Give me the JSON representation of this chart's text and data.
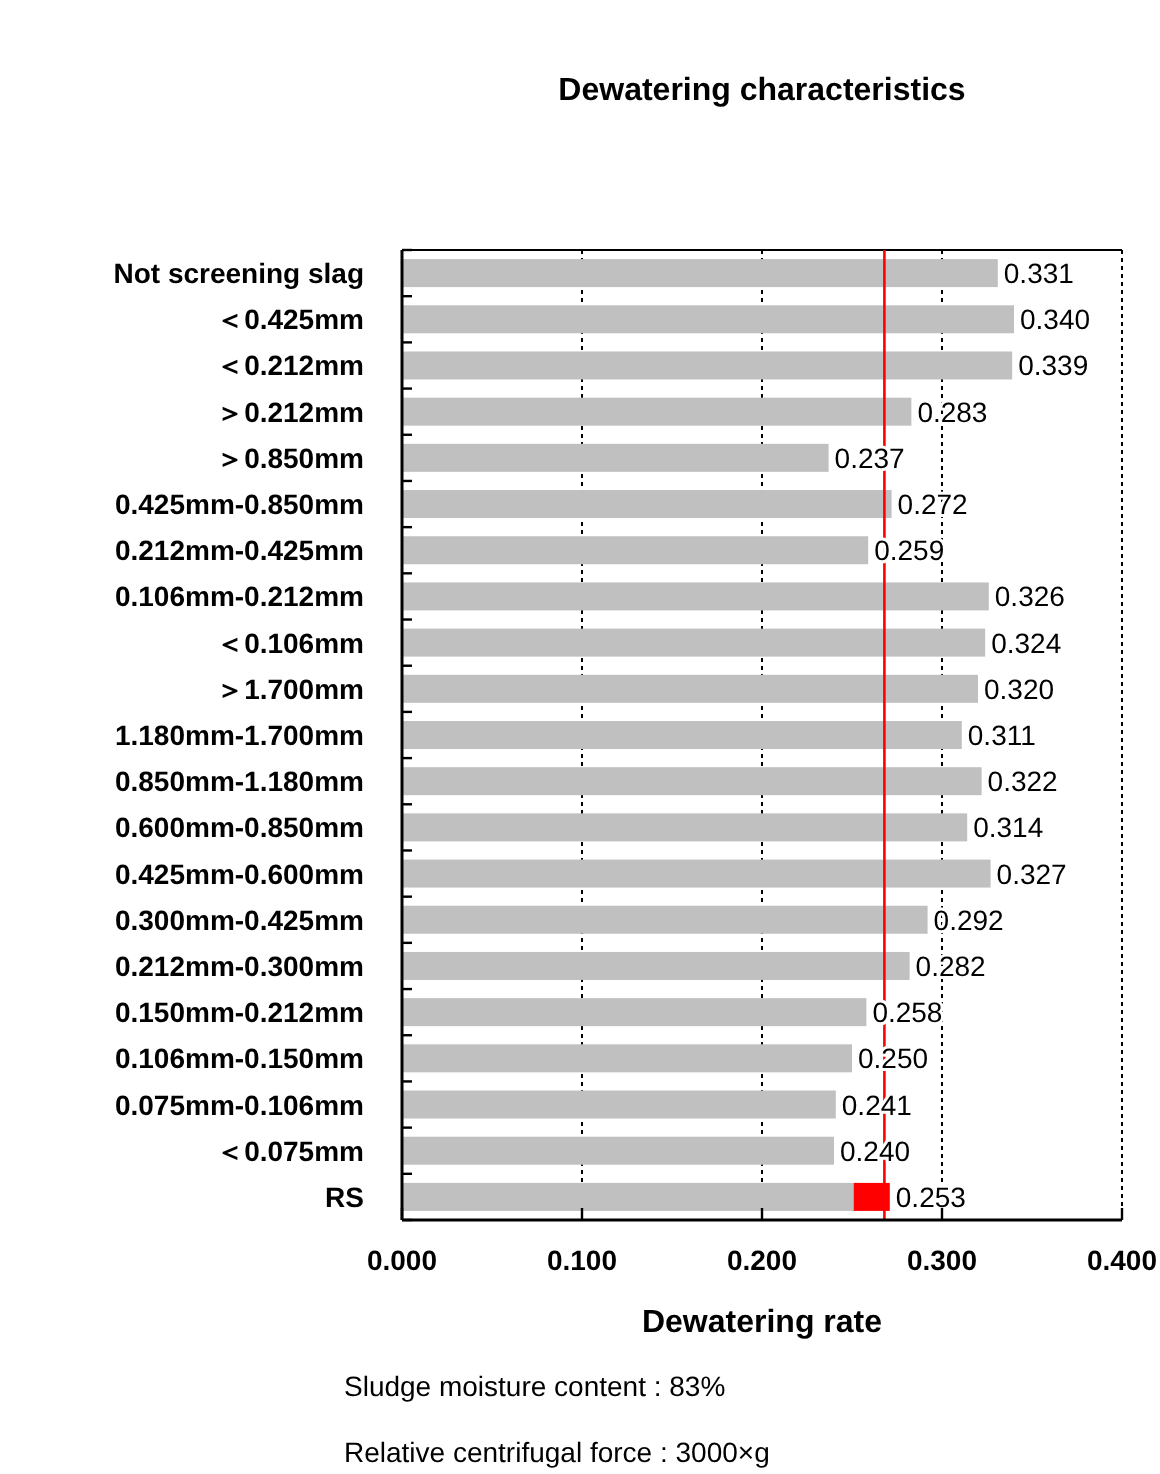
{
  "chart_data": {
    "type": "bar",
    "orientation": "horizontal",
    "title": "Dewatering characteristics",
    "xlabel": "Dewatering rate",
    "categories": [
      "Not screening slag",
      "＜0.425mm",
      "＜0.212mm",
      "＞0.212mm",
      "＞0.850mm",
      "0.425mm-0.850mm",
      "0.212mm-0.425mm",
      "0.106mm-0.212mm",
      "＜0.106mm",
      "＞1.700mm",
      "1.180mm-1.700mm",
      "0.850mm-1.180mm",
      "0.600mm-0.850mm",
      "0.425mm-0.600mm",
      "0.300mm-0.425mm",
      "0.212mm-0.300mm",
      "0.150mm-0.212mm",
      "0.106mm-0.150mm",
      "0.075mm-0.106mm",
      "＜0.075mm",
      "RS"
    ],
    "series": [
      {
        "color": "#c0c0c0",
        "values": [
          0.331,
          0.34,
          0.339,
          0.283,
          0.237,
          0.272,
          0.259,
          0.326,
          0.324,
          0.32,
          0.311,
          0.322,
          0.314,
          0.327,
          0.292,
          0.282,
          0.258,
          0.25,
          0.241,
          0.24,
          0.253
        ],
        "value_labels": [
          "0.331",
          "0.340",
          "0.339",
          "0.283",
          "0.237",
          "0.272",
          "0.259",
          "0.326",
          "0.324",
          "0.320",
          "0.311",
          "0.322",
          "0.314",
          "0.327",
          "0.292",
          "0.282",
          "0.258",
          "0.250",
          "0.241",
          "0.240",
          "0.253"
        ]
      },
      {
        "type": "scatter",
        "marker": "square",
        "color": "#ff0000",
        "x": [
          "RS"
        ],
        "values": [
          0.261
        ]
      }
    ],
    "xlim": [
      0,
      0.4
    ],
    "xticks": [
      {
        "value": 0,
        "label": "0.000"
      },
      {
        "value": 0.1,
        "label": "0.100"
      },
      {
        "value": 0.2,
        "label": "0.200"
      },
      {
        "value": 0.3,
        "label": "0.300"
      },
      {
        "value": 0.4,
        "label": "0.400"
      }
    ],
    "grid": "x",
    "ref_lines": [
      {
        "axis": "x",
        "value": 0.268,
        "color": "#ff0000"
      }
    ],
    "annotations": [
      "Sludge moisture content : 83%",
      "Relative centrifugal force : 3000×g"
    ]
  }
}
